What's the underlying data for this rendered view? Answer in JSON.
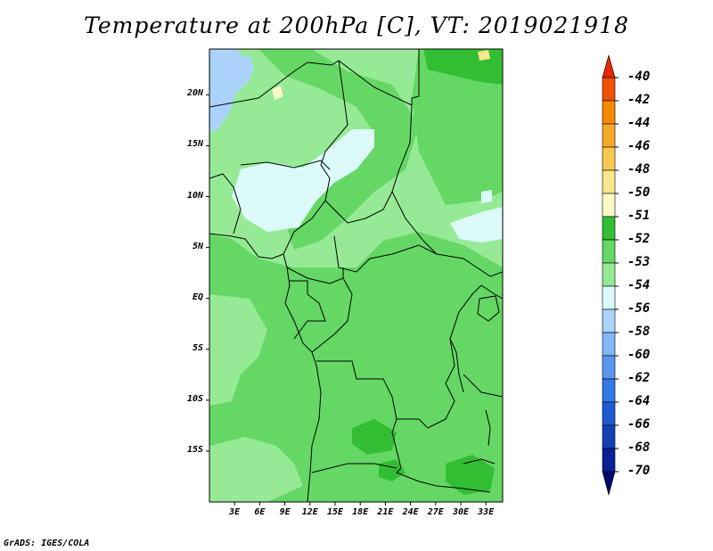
{
  "title": "Temperature at 200hPa [C], VT: 2019021918",
  "credit": "GrADS: IGES/COLA",
  "lat_ticks": [
    {
      "label": "20N",
      "lat": 20
    },
    {
      "label": "15N",
      "lat": 15
    },
    {
      "label": "10N",
      "lat": 10
    },
    {
      "label": "5N",
      "lat": 5
    },
    {
      "label": "EQ",
      "lat": 0
    },
    {
      "label": "5S",
      "lat": -5
    },
    {
      "label": "10S",
      "lat": -10
    },
    {
      "label": "15S",
      "lat": -15
    }
  ],
  "lon_ticks": [
    {
      "label": "3E",
      "lon": 3
    },
    {
      "label": "6E",
      "lon": 6
    },
    {
      "label": "9E",
      "lon": 9
    },
    {
      "label": "12E",
      "lon": 12
    },
    {
      "label": "15E",
      "lon": 15
    },
    {
      "label": "18E",
      "lon": 18
    },
    {
      "label": "21E",
      "lon": 21
    },
    {
      "label": "24E",
      "lon": 24
    },
    {
      "label": "27E",
      "lon": 27
    },
    {
      "label": "30E",
      "lon": 30
    },
    {
      "label": "33E",
      "lon": 33
    }
  ],
  "extent": {
    "lon_min": 0,
    "lon_max": 35,
    "lat_min": -20,
    "lat_max": 24.5
  },
  "colorbar": {
    "levels": [
      "-40",
      "-42",
      "-44",
      "-46",
      "-48",
      "-50",
      "-51",
      "-52",
      "-53",
      "-54",
      "-56",
      "-58",
      "-60",
      "-62",
      "-64",
      "-66",
      "-68",
      "-70"
    ],
    "colors": [
      "#e62800",
      "#f05000",
      "#f58c00",
      "#f8a828",
      "#f8c850",
      "#fae68c",
      "#fafac8",
      "#32be32",
      "#64d764",
      "#96ea96",
      "#dcfafa",
      "#aad2fa",
      "#82b4fa",
      "#5a96f0",
      "#3278e6",
      "#1e5ad2",
      "#1440b4",
      "#0a2096",
      "#000a6e"
    ]
  },
  "field_colors": {
    "lvl_m51": "#fafac8",
    "lvl_m52": "#32be32",
    "lvl_m53": "#64d764",
    "lvl_m54": "#96ea96",
    "lvl_m56": "#dcfafa",
    "lvl_m58": "#aad2fa",
    "lvl_m50": "#fae68c"
  }
}
